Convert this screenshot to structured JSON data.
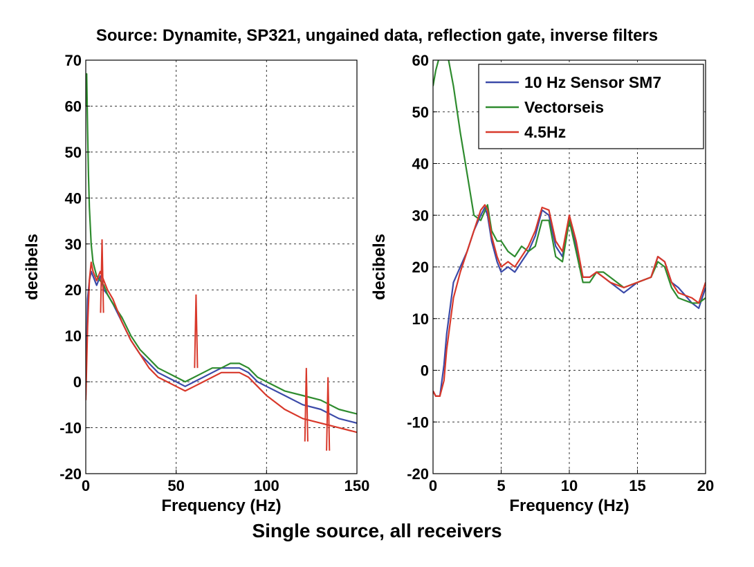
{
  "figure": {
    "title": "Source: Dynamite, SP321, ungained data, reflection gate, inverse filters",
    "caption": "Single source, all receivers"
  },
  "chart_data": [
    {
      "type": "line",
      "xlabel": "Frequency (Hz)",
      "ylabel": "decibels",
      "xlim": [
        0,
        150
      ],
      "ylim": [
        -20,
        70
      ],
      "xticks": [
        0,
        50,
        100,
        150
      ],
      "yticks": [
        -20,
        -10,
        0,
        10,
        20,
        30,
        40,
        50,
        60,
        70
      ],
      "grid": true,
      "legend": "none",
      "series": [
        {
          "name": "10 Hz Sensor SM7",
          "color": "#3b4aa8",
          "x": [
            0,
            1,
            2,
            3,
            4,
            6,
            8,
            10,
            12,
            15,
            20,
            25,
            30,
            35,
            40,
            45,
            50,
            55,
            60,
            65,
            70,
            75,
            80,
            85,
            90,
            95,
            100,
            110,
            120,
            130,
            140,
            150
          ],
          "y": [
            -3,
            18,
            22,
            24,
            23,
            21,
            23,
            20,
            19,
            17,
            13,
            9,
            6,
            4,
            2,
            1,
            0,
            -1,
            0,
            1,
            2,
            3,
            3,
            3,
            2,
            0,
            -1,
            -3,
            -5,
            -6,
            -8,
            -9
          ]
        },
        {
          "name": "Vectorseis",
          "color": "#2e8b2e",
          "x": [
            0,
            0.5,
            1,
            1.5,
            2,
            3,
            4,
            6,
            8,
            10,
            12,
            15,
            20,
            25,
            30,
            35,
            40,
            45,
            50,
            55,
            60,
            65,
            70,
            75,
            80,
            85,
            90,
            95,
            100,
            110,
            120,
            130,
            140,
            150
          ],
          "y": [
            60,
            67,
            55,
            45,
            38,
            30,
            26,
            23,
            22,
            21,
            19,
            17,
            14,
            10,
            7,
            5,
            3,
            2,
            1,
            0,
            1,
            2,
            3,
            3,
            4,
            4,
            3,
            1,
            0,
            -2,
            -3,
            -4,
            -6,
            -7
          ]
        },
        {
          "name": "4.5Hz",
          "color": "#d8382a",
          "x": [
            0,
            1,
            2,
            3,
            4,
            6,
            8,
            10,
            12,
            15,
            20,
            25,
            30,
            35,
            40,
            45,
            50,
            55,
            60,
            65,
            70,
            75,
            80,
            85,
            90,
            95,
            100,
            110,
            120,
            130,
            140,
            150
          ],
          "y": [
            -4,
            12,
            22,
            26,
            24,
            22,
            24,
            22,
            20,
            18,
            13,
            9,
            6,
            3,
            1,
            0,
            -1,
            -2,
            -1,
            0,
            1,
            2,
            2,
            2,
            1,
            -1,
            -3,
            -6,
            -8,
            -9,
            -10,
            -11
          ]
        }
      ],
      "annotations": [
        {
          "series": "4.5Hz",
          "x": 61,
          "y": 19
        },
        {
          "series": "4.5Hz",
          "x": 122,
          "y": 3
        },
        {
          "series": "4.5Hz",
          "x": 134,
          "y": 1
        },
        {
          "series": "4.5Hz",
          "x": 9,
          "y": 31
        }
      ]
    },
    {
      "type": "line",
      "xlabel": "Frequency (Hz)",
      "ylabel": "decibels",
      "xlim": [
        0,
        20
      ],
      "ylim": [
        -20,
        60
      ],
      "xticks": [
        0,
        5,
        10,
        15,
        20
      ],
      "yticks": [
        -20,
        -10,
        0,
        10,
        20,
        30,
        40,
        50,
        60
      ],
      "grid": true,
      "legend": "top-right",
      "series": [
        {
          "name": "10 Hz Sensor SM7",
          "color": "#3b4aa8",
          "x": [
            0,
            0.2,
            0.5,
            0.8,
            1,
            1.5,
            2,
            2.5,
            3,
            3.5,
            3.8,
            4,
            4.3,
            4.7,
            5,
            5.5,
            6,
            6.5,
            7,
            7.5,
            8,
            8.5,
            9,
            9.5,
            10,
            10.5,
            11,
            11.5,
            12,
            12.5,
            13,
            14,
            15,
            16,
            16.5,
            17,
            17.5,
            18,
            19,
            19.5,
            20
          ],
          "y": [
            -4,
            -5,
            -5,
            1,
            7,
            17,
            20,
            23,
            27,
            30,
            31.5,
            30,
            25,
            21,
            19,
            20,
            19,
            21,
            23,
            26,
            31,
            30,
            24,
            22,
            30,
            24,
            18,
            18,
            19,
            18,
            17,
            15,
            17,
            18,
            22,
            21,
            17,
            16,
            13,
            12,
            16
          ]
        },
        {
          "name": "Vectorseis",
          "color": "#2e8b2e",
          "x": [
            0,
            0.2,
            0.4,
            0.6,
            0.8,
            1,
            1.5,
            2,
            2.5,
            3,
            3.5,
            4,
            4.3,
            4.7,
            5,
            5.5,
            6,
            6.5,
            7,
            7.5,
            8,
            8.5,
            9,
            9.5,
            10,
            10.5,
            11,
            11.5,
            12,
            12.5,
            13,
            14,
            15,
            16,
            16.5,
            17,
            17.5,
            18,
            19,
            19.5,
            20
          ],
          "y": [
            55,
            58,
            60,
            62,
            63,
            62,
            55,
            46,
            38,
            30,
            29,
            32,
            27,
            25,
            25,
            23,
            22,
            24,
            23,
            24,
            29,
            29,
            22,
            21,
            29,
            23,
            17,
            17,
            19,
            19,
            18,
            16,
            17,
            18,
            21,
            20,
            16,
            14,
            13,
            13,
            14
          ]
        },
        {
          "name": "4.5Hz",
          "color": "#d8382a",
          "x": [
            0,
            0.2,
            0.5,
            0.8,
            1,
            1.5,
            2,
            2.5,
            3,
            3.5,
            3.8,
            4,
            4.3,
            4.7,
            5,
            5.5,
            6,
            6.5,
            7,
            7.5,
            8,
            8.5,
            9,
            9.5,
            10,
            10.5,
            11,
            11.5,
            12,
            12.5,
            13,
            14,
            15,
            16,
            16.5,
            17,
            17.5,
            18,
            19,
            19.5,
            20
          ],
          "y": [
            -4,
            -5,
            -5,
            -2,
            4,
            14,
            19,
            23,
            27,
            31,
            32,
            31,
            26,
            22,
            20,
            21,
            20,
            22,
            24,
            27,
            31.5,
            31,
            25,
            23,
            30,
            25,
            18,
            18,
            19,
            18,
            17,
            16,
            17,
            18,
            22,
            21,
            17,
            15,
            14,
            13,
            17
          ]
        }
      ]
    }
  ]
}
